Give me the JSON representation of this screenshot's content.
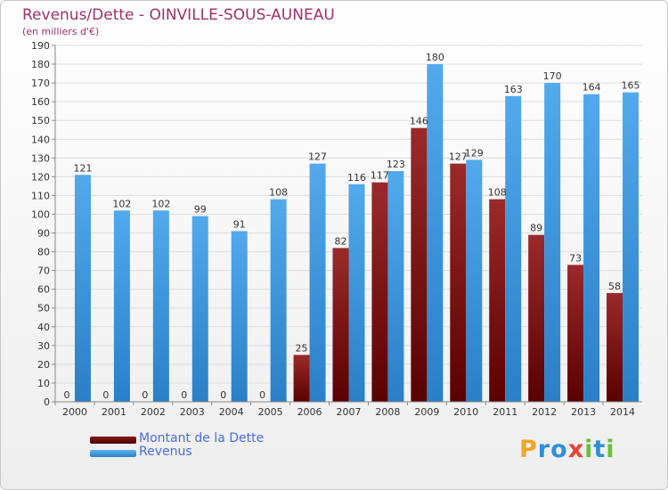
{
  "header": {
    "title": "Revenus/Dette - OINVILLE-SOUS-AUNEAU",
    "subtitle": "(en milliers d'€)"
  },
  "colors": {
    "dette": "#8b1a1a",
    "revenus": "#3f9ae0",
    "title": "#a0306a",
    "legend_text": "#4a6ee0"
  },
  "legend": {
    "items": [
      {
        "label": "Montant de la Dette",
        "color": "#6b0000"
      },
      {
        "label": "Revenus",
        "color": "#3f9ae0"
      }
    ]
  },
  "logo": {
    "text": "Proxiti",
    "letters": [
      {
        "ch": "P",
        "color": "#f5a623"
      },
      {
        "ch": "r",
        "color": "#2f8fd8"
      },
      {
        "ch": "o",
        "color": "#2f8fd8"
      },
      {
        "ch": "x",
        "color": "#e8403a"
      },
      {
        "ch": "i",
        "color": "#6bbf3a"
      },
      {
        "ch": "t",
        "color": "#2f8fd8"
      },
      {
        "ch": "i",
        "color": "#6bbf3a"
      }
    ]
  },
  "chart_data": {
    "type": "bar",
    "title": "Revenus/Dette - OINVILLE-SOUS-AUNEAU",
    "subtitle": "(en milliers d'€)",
    "categories": [
      "2000",
      "2001",
      "2002",
      "2003",
      "2004",
      "2005",
      "2006",
      "2007",
      "2008",
      "2009",
      "2010",
      "2011",
      "2012",
      "2013",
      "2014"
    ],
    "series": [
      {
        "name": "Montant de la Dette",
        "values": [
          0,
          0,
          0,
          0,
          0,
          0,
          25,
          82,
          117,
          146,
          127,
          108,
          89,
          73,
          58
        ]
      },
      {
        "name": "Revenus",
        "values": [
          121,
          102,
          102,
          99,
          91,
          108,
          127,
          116,
          123,
          180,
          129,
          163,
          170,
          164,
          165
        ]
      }
    ],
    "ylim": [
      0,
      190
    ],
    "yticks": [
      0,
      10,
      20,
      30,
      40,
      50,
      60,
      70,
      80,
      90,
      100,
      110,
      120,
      130,
      140,
      150,
      160,
      170,
      180,
      190
    ],
    "grid": true,
    "legend_position": "bottom-left"
  }
}
